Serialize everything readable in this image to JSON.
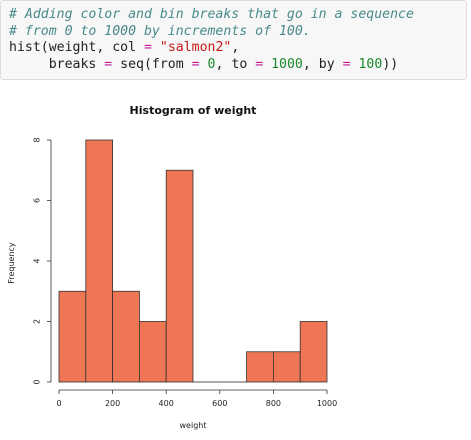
{
  "code": {
    "lines": [
      [
        {
          "t": "# Adding color and bin breaks that go in a sequence",
          "k": "comment"
        }
      ],
      [
        {
          "t": "# from 0 to 1000 by increments of 100.",
          "k": "comment"
        }
      ],
      [
        {
          "t": "hist(weight, col ",
          "k": "plain"
        },
        {
          "t": "=",
          "k": "op"
        },
        {
          "t": " ",
          "k": "plain"
        },
        {
          "t": "\"salmon2\"",
          "k": "str"
        },
        {
          "t": ",",
          "k": "plain"
        }
      ],
      [
        {
          "t": "     breaks ",
          "k": "plain"
        },
        {
          "t": "=",
          "k": "op"
        },
        {
          "t": " seq(from ",
          "k": "plain"
        },
        {
          "t": "=",
          "k": "op"
        },
        {
          "t": " ",
          "k": "plain"
        },
        {
          "t": "0",
          "k": "num"
        },
        {
          "t": ", to ",
          "k": "plain"
        },
        {
          "t": "=",
          "k": "op"
        },
        {
          "t": " ",
          "k": "plain"
        },
        {
          "t": "1000",
          "k": "num"
        },
        {
          "t": ", by ",
          "k": "plain"
        },
        {
          "t": "=",
          "k": "op"
        },
        {
          "t": " ",
          "k": "plain"
        },
        {
          "t": "100",
          "k": "num"
        },
        {
          "t": "))",
          "k": "plain"
        }
      ]
    ]
  },
  "chart_data": {
    "type": "bar",
    "title": "Histogram of weight",
    "xlabel": "weight",
    "ylabel": "Frequency",
    "bin_edges": [
      0,
      100,
      200,
      300,
      400,
      500,
      600,
      700,
      800,
      900,
      1000
    ],
    "values": [
      3,
      8,
      3,
      2,
      7,
      0,
      0,
      1,
      1,
      2
    ],
    "xlim": [
      0,
      1000
    ],
    "ylim": [
      0,
      8
    ],
    "x_ticks": [
      0,
      200,
      400,
      600,
      800,
      1000
    ],
    "y_ticks": [
      0,
      2,
      4,
      6,
      8
    ],
    "bar_color": "#ee7654",
    "bar_border_color": "#333333",
    "grid": false,
    "legend": "none"
  }
}
